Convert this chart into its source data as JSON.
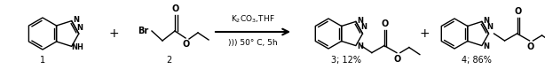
{
  "bg_color": "#ffffff",
  "fig_width": 6.14,
  "fig_height": 0.78,
  "dpi": 100,
  "compound1_label": "1",
  "compound2_label": "2",
  "compound3_label": "3; 12%",
  "compound4_label": "4; 86%",
  "arrow_label_top": "K$_2$CO$_3$,THF",
  "arrow_label_bottom": "))) 50° C, 5h",
  "lw": 1.0
}
